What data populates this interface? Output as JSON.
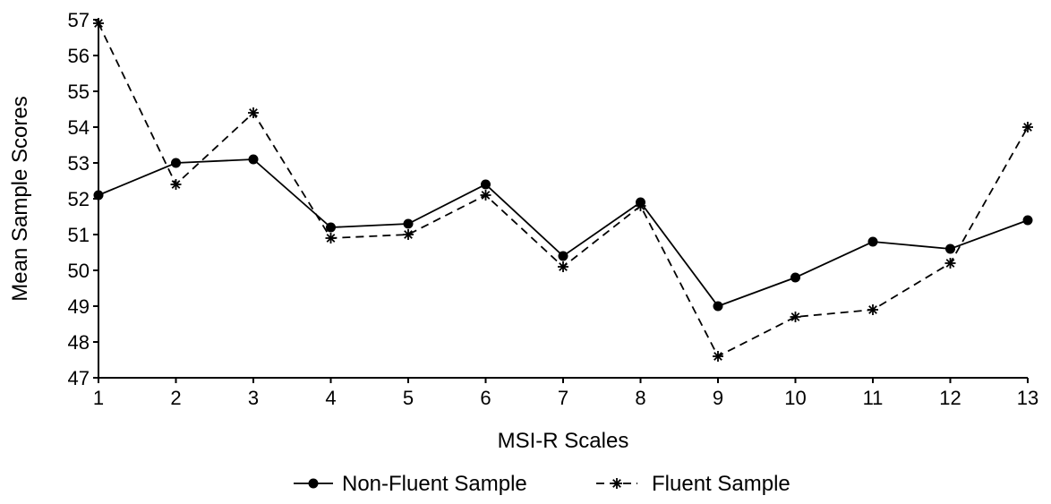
{
  "chart_data": {
    "type": "line",
    "title": "",
    "xlabel": "MSI-R Scales",
    "ylabel": "Mean Sample Scores",
    "x": [
      1,
      2,
      3,
      4,
      5,
      6,
      7,
      8,
      9,
      10,
      11,
      12,
      13
    ],
    "xlim": [
      1,
      13
    ],
    "ylim": [
      47,
      57
    ],
    "yticks": [
      47,
      48,
      49,
      50,
      51,
      52,
      53,
      54,
      55,
      56,
      57
    ],
    "grid": false,
    "legend_position": "bottom",
    "series": [
      {
        "name": "Non-Fluent Sample",
        "line_style": "solid",
        "marker": "filled-circle",
        "color": "#000000",
        "values": [
          52.1,
          53.0,
          53.1,
          51.2,
          51.3,
          52.4,
          50.4,
          51.9,
          49.0,
          49.8,
          50.8,
          50.6,
          51.4
        ]
      },
      {
        "name": "Fluent Sample",
        "line_style": "dashed",
        "marker": "asterisk",
        "color": "#000000",
        "values": [
          56.9,
          52.4,
          54.4,
          50.9,
          51.0,
          52.1,
          50.1,
          51.8,
          47.6,
          48.7,
          48.9,
          50.2,
          54.0
        ]
      }
    ]
  }
}
